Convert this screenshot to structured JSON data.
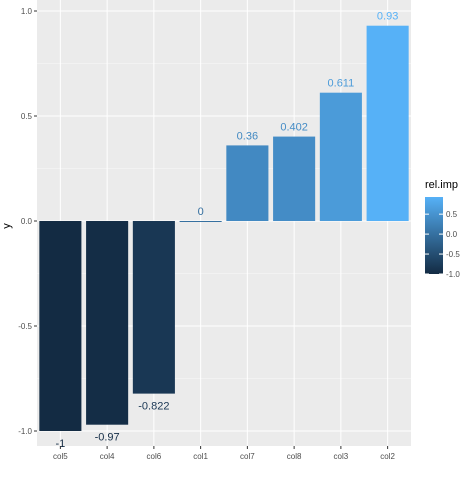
{
  "chart_data": {
    "type": "bar",
    "categories": [
      "col5",
      "col4",
      "col6",
      "col1",
      "col7",
      "col8",
      "col3",
      "col2"
    ],
    "values": [
      -1,
      -0.97,
      -0.822,
      0,
      0.36,
      0.402,
      0.611,
      0.93
    ],
    "value_labels": [
      "-1",
      "-0.97",
      "-0.822",
      "0",
      "0.36",
      "0.402",
      "0.611",
      "0.93"
    ],
    "xlabel": "",
    "ylabel": "y",
    "ylim": [
      -1.05,
      1.0
    ],
    "yticks": [
      -1.0,
      -0.5,
      0.0,
      0.5,
      1.0
    ],
    "ytick_labels": [
      "-1.0",
      "-0.5",
      "0.0",
      "0.5",
      "1.0"
    ],
    "grid": true,
    "legend": {
      "title": "rel.imp",
      "position": "right",
      "range": [
        -1.0,
        0.93
      ],
      "ticks": [
        0.5,
        0.0,
        -0.5,
        -1.0
      ],
      "tick_labels": [
        "0.5",
        "0.0",
        "-0.5",
        "-1.0"
      ]
    },
    "colors": {
      "panel_bg": "#ebebeb",
      "grid_major": "#ffffff",
      "low": "#132b43",
      "high": "#56b1f7",
      "axis_text": "#4d4d4d"
    }
  }
}
